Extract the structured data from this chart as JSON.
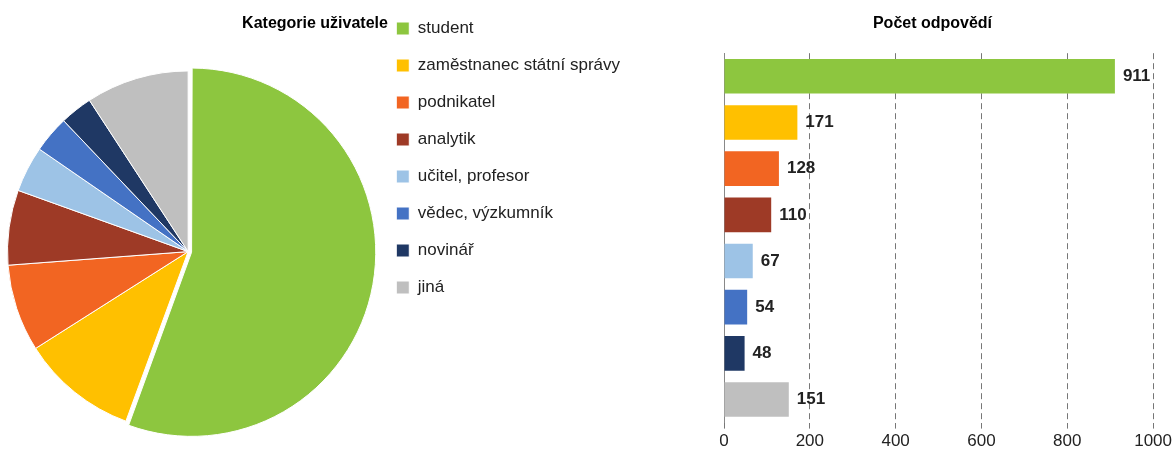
{
  "chart_data": [
    {
      "type": "pie",
      "title": "Kategorie uživatele",
      "categories": [
        "student",
        "zaměstnanec státní správy",
        "podnikatel",
        "analytik",
        "učitel, profesor",
        "vědec, výzkumník",
        "novinář",
        "jiná"
      ],
      "values": [
        55.6,
        10.4,
        7.8,
        6.7,
        4.1,
        3.3,
        2.9,
        9.2
      ],
      "colors": [
        "#8dc63f",
        "#ffc000",
        "#f26522",
        "#9e3a26",
        "#9dc3e6",
        "#4472c4",
        "#1f3864",
        "#bfbfbf"
      ],
      "legend": "right"
    },
    {
      "type": "bar",
      "title": "Počet odpovědí",
      "orientation": "horizontal",
      "categories": [
        null,
        null,
        null,
        null,
        null,
        null,
        null,
        null
      ],
      "values": [
        911,
        171,
        128,
        110,
        67,
        54,
        48,
        151
      ],
      "colors": [
        "#8dc63f",
        "#ffc000",
        "#f26522",
        "#9e3a26",
        "#9dc3e6",
        "#4472c4",
        "#1f3864",
        "#bfbfbf"
      ],
      "xlim": [
        0,
        1000
      ],
      "xticks": [
        0,
        200,
        400,
        600,
        800,
        1000
      ],
      "grid": "x",
      "data_labels": true
    }
  ]
}
